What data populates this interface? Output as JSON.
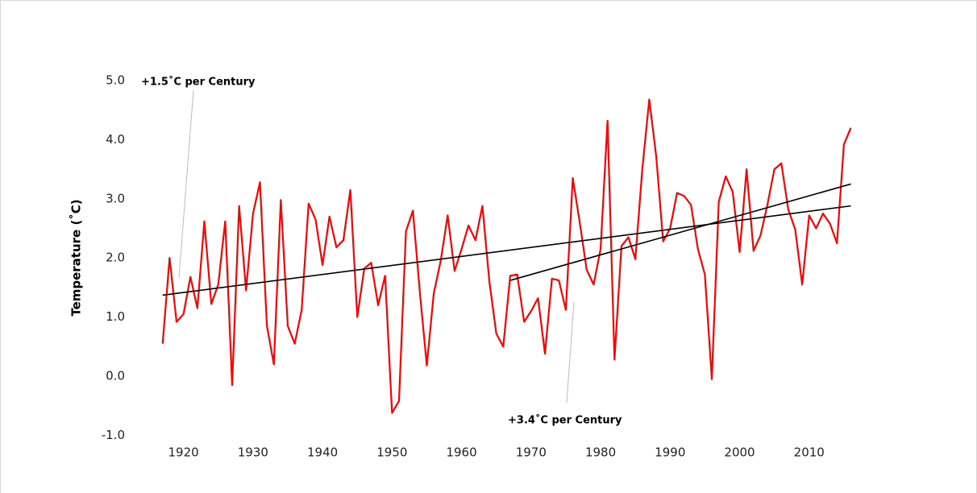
{
  "chart_data": {
    "type": "line",
    "y_label": "Temperature (˚C)",
    "x": [
      1917,
      1918,
      1919,
      1920,
      1921,
      1922,
      1923,
      1924,
      1925,
      1926,
      1927,
      1928,
      1929,
      1930,
      1931,
      1932,
      1933,
      1934,
      1935,
      1936,
      1937,
      1938,
      1939,
      1940,
      1941,
      1942,
      1943,
      1944,
      1945,
      1946,
      1947,
      1948,
      1949,
      1950,
      1951,
      1952,
      1953,
      1954,
      1955,
      1956,
      1957,
      1958,
      1959,
      1960,
      1961,
      1962,
      1963,
      1964,
      1965,
      1966,
      1967,
      1968,
      1969,
      1970,
      1971,
      1972,
      1973,
      1974,
      1975,
      1976,
      1977,
      1978,
      1979,
      1980,
      1981,
      1982,
      1983,
      1984,
      1985,
      1986,
      1987,
      1988,
      1989,
      1990,
      1991,
      1992,
      1993,
      1994,
      1995,
      1996,
      1997,
      1998,
      1999,
      2000,
      2001,
      2002,
      2003,
      2004,
      2005,
      2006,
      2007,
      2008,
      2009,
      2010,
      2011,
      2012,
      2013,
      2014,
      2015,
      2016
    ],
    "series": [
      {
        "color": "#ff0000",
        "values": [
          0.55,
          2.0,
          0.92,
          1.05,
          1.68,
          1.15,
          2.62,
          1.22,
          1.55,
          2.62,
          -0.15,
          2.88,
          1.45,
          2.75,
          3.28,
          0.85,
          0.2,
          2.98,
          0.85,
          0.55,
          1.12,
          2.92,
          2.65,
          1.88,
          2.7,
          2.18,
          2.3,
          3.15,
          1.0,
          1.82,
          1.92,
          1.2,
          1.7,
          -0.62,
          -0.42,
          2.45,
          2.8,
          1.42,
          0.18,
          1.4,
          1.95,
          2.72,
          1.78,
          2.15,
          2.55,
          2.3,
          2.88,
          1.6,
          0.72,
          0.5,
          1.7,
          1.72,
          0.92,
          1.1,
          1.32,
          0.38,
          1.65,
          1.62,
          1.12,
          3.35,
          2.6,
          1.8,
          1.55,
          2.15,
          4.32,
          0.28,
          2.2,
          2.35,
          1.98,
          3.5,
          4.68,
          3.72,
          2.28,
          2.5,
          3.1,
          3.05,
          2.9,
          2.15,
          1.72,
          -0.05,
          2.95,
          3.38,
          3.12,
          2.1,
          3.5,
          2.12,
          2.38,
          2.9,
          3.5,
          3.6,
          2.82,
          2.48,
          1.55,
          2.72,
          2.5,
          2.75,
          2.58,
          2.25,
          3.92,
          4.2
        ]
      }
    ],
    "trendlines": [
      {
        "label": "+1.5˚C per Century",
        "color": "#000000",
        "x": [
          1917,
          2016
        ],
        "values": [
          1.37,
          2.88
        ]
      },
      {
        "label": "+3.4˚C per Century",
        "color": "#000000",
        "x": [
          1967,
          2016
        ],
        "values": [
          1.62,
          3.25
        ]
      }
    ],
    "xlim": [
      1915,
      2020
    ],
    "xticks": [
      1920,
      1930,
      1940,
      1950,
      1960,
      1970,
      1980,
      1990,
      2000,
      2010
    ],
    "ylim": [
      -1.0,
      5.0
    ],
    "yticks": [
      {
        "value": -1.0,
        "label": "-1.0"
      },
      {
        "value": 0,
        "label": "0.0"
      },
      {
        "value": 1.0,
        "label": "1.0"
      },
      {
        "value": 2.0,
        "label": "2.0"
      },
      {
        "value": 3.0,
        "label": "3.0"
      },
      {
        "value": 4.0,
        "label": "4.0"
      },
      {
        "value": 5.0,
        "label": "5.0"
      }
    ],
    "grid": false
  }
}
